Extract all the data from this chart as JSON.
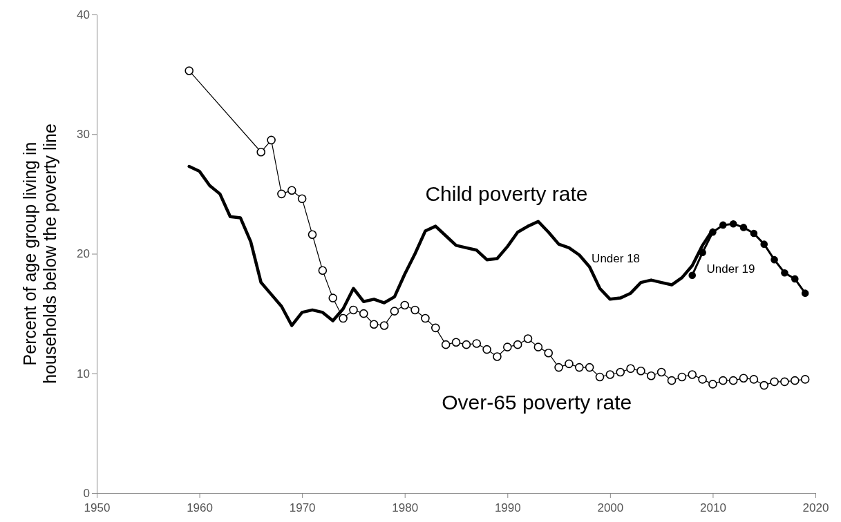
{
  "chart_data": {
    "type": "line",
    "ylabel": "Percent of age group living in households below the poverty line",
    "xlim": [
      1950,
      2020
    ],
    "xticks": [
      1950,
      1960,
      1970,
      1980,
      1990,
      2000,
      2010,
      2020
    ],
    "ylim": [
      0,
      40
    ],
    "yticks": [
      0,
      10,
      20,
      30,
      40
    ],
    "grid": false,
    "annotations": [
      "Child poverty rate"
    ],
    "series": [
      {
        "name": "Under 18",
        "color": "#000000",
        "marker": "none",
        "x": [
          1959,
          1960,
          1961,
          1962,
          1963,
          1964,
          1965,
          1966,
          1967,
          1968,
          1969,
          1970,
          1971,
          1972,
          1973,
          1974,
          1975,
          1976,
          1977,
          1978,
          1979,
          1980,
          1981,
          1982,
          1983,
          1984,
          1985,
          1986,
          1987,
          1988,
          1989,
          1990,
          1991,
          1992,
          1993,
          1994,
          1995,
          1996,
          1997,
          1998,
          1999,
          2000,
          2001,
          2002,
          2003,
          2004,
          2005,
          2006,
          2007,
          2008,
          2009,
          2010
        ],
        "values": [
          27.3,
          26.9,
          25.7,
          25.0,
          23.1,
          23.0,
          21.0,
          17.6,
          16.6,
          15.6,
          14.0,
          15.1,
          15.3,
          15.1,
          14.4,
          15.4,
          17.1,
          16.0,
          16.2,
          15.9,
          16.4,
          18.3,
          20.0,
          21.9,
          22.3,
          21.5,
          20.7,
          20.5,
          20.3,
          19.5,
          19.6,
          20.6,
          21.8,
          22.3,
          22.7,
          21.8,
          20.8,
          20.5,
          19.9,
          18.9,
          17.1,
          16.2,
          16.3,
          16.7,
          17.6,
          17.8,
          17.6,
          17.4,
          18.0,
          19.0,
          20.7,
          22.0
        ]
      },
      {
        "name": "Under 19",
        "color": "#000000",
        "marker": "circle",
        "x": [
          2008,
          2009,
          2010,
          2011,
          2012,
          2013,
          2014,
          2015,
          2016,
          2017,
          2018,
          2019
        ],
        "values": [
          18.2,
          20.1,
          21.8,
          22.4,
          22.5,
          22.2,
          21.7,
          20.8,
          19.5,
          18.4,
          17.9,
          16.7
        ]
      },
      {
        "name": "Over-65 poverty rate",
        "color": "#000000",
        "marker": "circle",
        "x": [
          1959,
          1966,
          1967,
          1968,
          1969,
          1970,
          1971,
          1972,
          1973,
          1974,
          1975,
          1976,
          1977,
          1978,
          1979,
          1980,
          1981,
          1982,
          1983,
          1984,
          1985,
          1986,
          1987,
          1988,
          1989,
          1990,
          1991,
          1992,
          1993,
          1994,
          1995,
          1996,
          1997,
          1998,
          1999,
          2000,
          2001,
          2002,
          2003,
          2004,
          2005,
          2006,
          2007,
          2008,
          2009,
          2010,
          2011,
          2012,
          2013,
          2014,
          2015,
          2016,
          2017,
          2018,
          2019
        ],
        "values": [
          35.3,
          28.5,
          29.5,
          25.0,
          25.3,
          24.6,
          21.6,
          18.6,
          16.3,
          14.6,
          15.3,
          15.0,
          14.1,
          14.0,
          15.2,
          15.7,
          15.3,
          14.6,
          13.8,
          12.4,
          12.6,
          12.4,
          12.5,
          12.0,
          11.4,
          12.2,
          12.4,
          12.9,
          12.2,
          11.7,
          10.5,
          10.8,
          10.5,
          10.5,
          9.7,
          9.9,
          10.1,
          10.4,
          10.2,
          9.8,
          10.1,
          9.4,
          9.7,
          9.9,
          9.5,
          9.1,
          9.4,
          9.4,
          9.6,
          9.5,
          9.0,
          9.3,
          9.3,
          9.4,
          9.5
        ]
      }
    ]
  }
}
